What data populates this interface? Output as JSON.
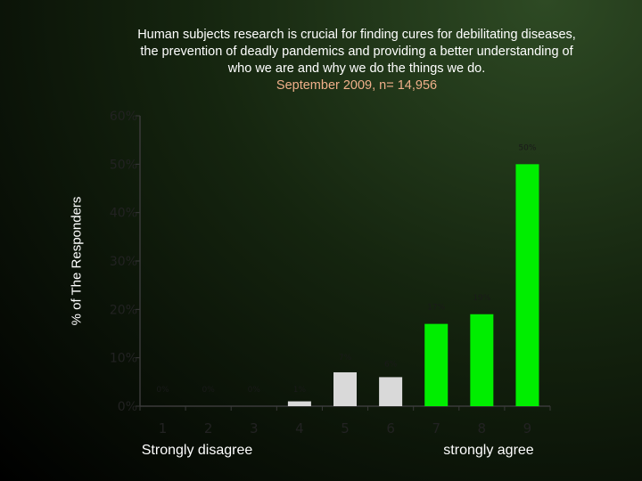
{
  "title": {
    "line1": "Human subjects research is crucial for finding cures for debilitating diseases,",
    "line2": "the prevention of deadly pandemics and providing a better understanding of",
    "line3": "who we are and why we do the things we do.",
    "subtitle": "September 2009, n= 14,956"
  },
  "colors": {
    "bar_agree": "#00ee00",
    "bar_neutral": "#d9d9d9",
    "axis": "#3a3a3a"
  },
  "chart_data": {
    "type": "bar",
    "categories": [
      "1",
      "2",
      "3",
      "4",
      "5",
      "6",
      "7",
      "8",
      "9"
    ],
    "values": [
      0,
      0,
      0,
      1,
      7,
      6,
      17,
      19,
      50
    ],
    "data_labels": [
      "0%",
      "0%",
      "0%",
      "1%",
      "7%",
      "6%",
      "17%",
      "19%",
      "50%"
    ],
    "bar_colors": [
      "#d9d9d9",
      "#d9d9d9",
      "#d9d9d9",
      "#d9d9d9",
      "#d9d9d9",
      "#d9d9d9",
      "#00ee00",
      "#00ee00",
      "#00ee00"
    ],
    "yticks": [
      "0%",
      "10%",
      "20%",
      "30%",
      "40%",
      "50%",
      "60%"
    ],
    "ylim": [
      0,
      60
    ],
    "ylabel": "% of The Responders",
    "xlabel_left": "Strongly disagree",
    "xlabel_right": "strongly agree",
    "grid": false
  }
}
